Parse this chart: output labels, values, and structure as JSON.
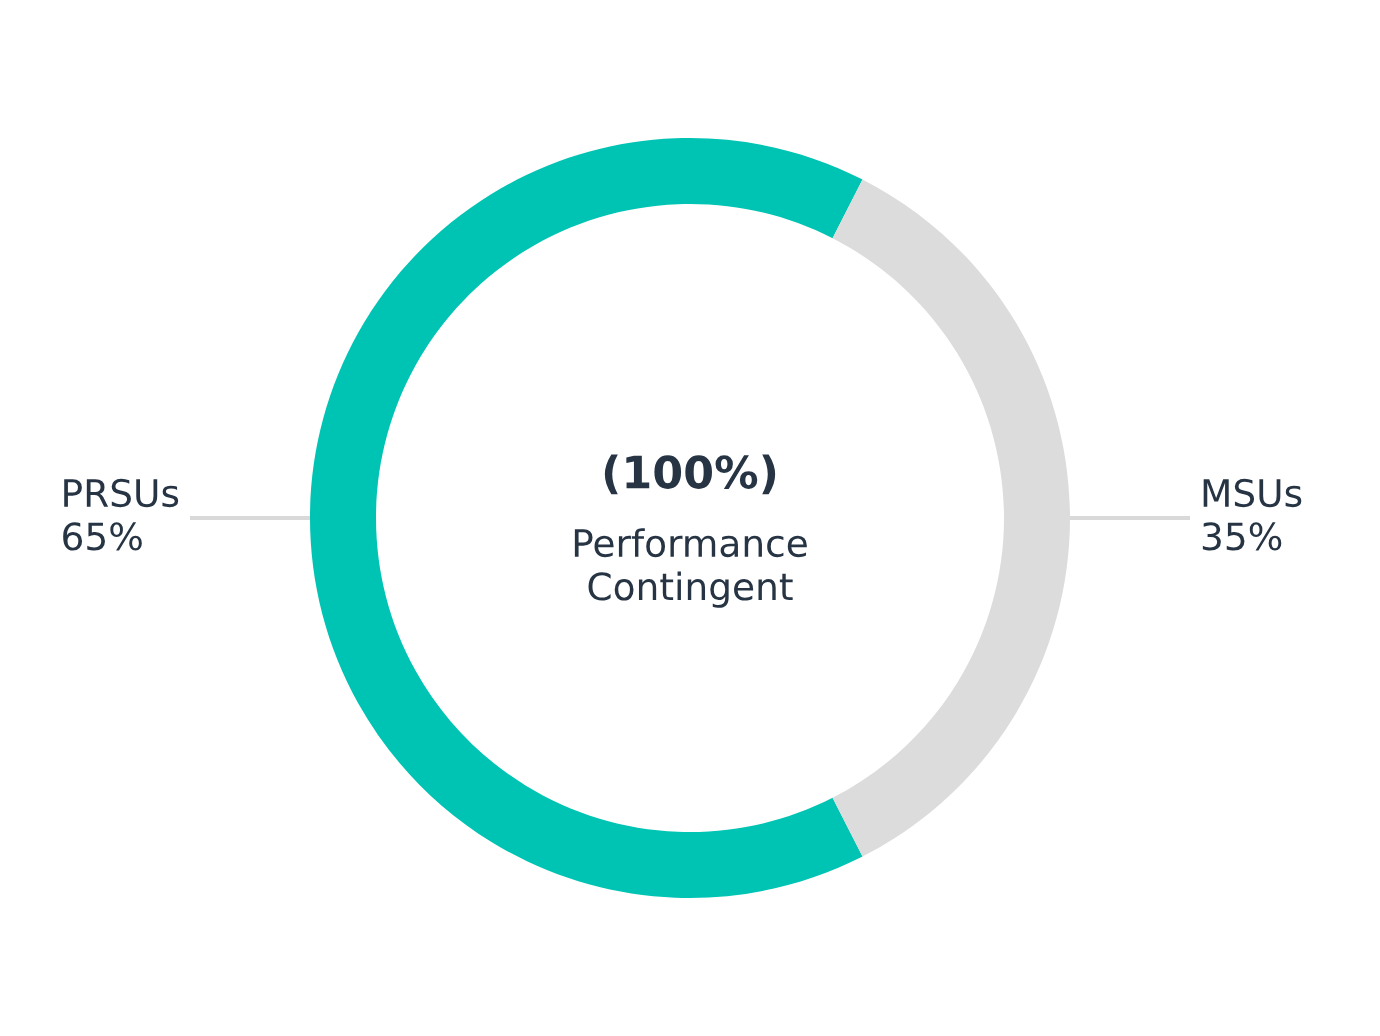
{
  "chart_data": {
    "type": "donut",
    "categories": [
      "PRSUs",
      "MSUs"
    ],
    "values": [
      65,
      35
    ],
    "colors": [
      "#00c4b3",
      "#dcdcdc"
    ],
    "value_labels": [
      "65%",
      "35%"
    ],
    "annotations": [
      "(100%)",
      "Performance Contingent"
    ]
  }
}
